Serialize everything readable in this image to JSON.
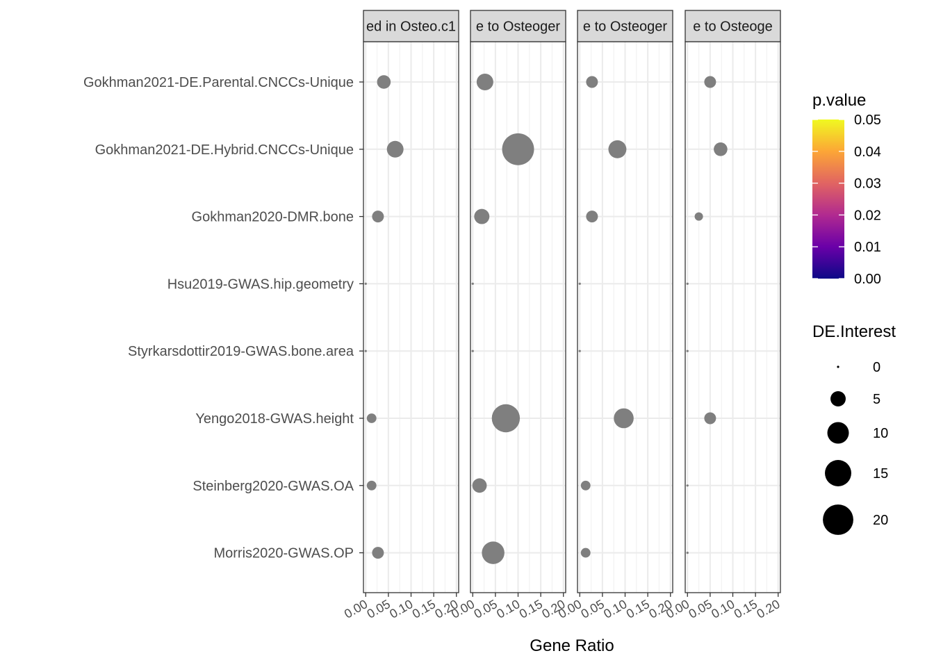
{
  "chart_data": {
    "type": "scatter",
    "xlabel": "Gene Ratio",
    "ylabel": "",
    "xlim": [
      -0.005,
      0.205
    ],
    "x_ticks": [
      0.0,
      0.05,
      0.1,
      0.15,
      0.2
    ],
    "x_tick_labels": [
      "0.00",
      "0.05",
      "0.10",
      "0.15",
      "0.20"
    ],
    "grid": true,
    "categories": [
      "Gokhman2021-DE.Parental.CNCCs-Unique",
      "Gokhman2021-DE.Hybrid.CNCCs-Unique",
      "Gokhman2020-DMR.bone",
      "Hsu2019-GWAS.hip.geometry",
      "Styrkarsdottir2019-GWAS.bone.area",
      "Yengo2018-GWAS.height",
      "Steinberg2020-GWAS.OA",
      "Morris2020-GWAS.OP"
    ],
    "panels": [
      {
        "strip_label": "ed in Osteo.c1",
        "points": [
          {
            "category": "Gokhman2021-DE.Parental.CNCCs-Unique",
            "x": 0.04,
            "size": 4
          },
          {
            "category": "Gokhman2021-DE.Hybrid.CNCCs-Unique",
            "x": 0.065,
            "size": 6
          },
          {
            "category": "Gokhman2020-DMR.bone",
            "x": 0.027,
            "size": 3
          },
          {
            "category": "Hsu2019-GWAS.hip.geometry",
            "x": 0.0,
            "size": 0
          },
          {
            "category": "Styrkarsdottir2019-GWAS.bone.area",
            "x": 0.0,
            "size": 0
          },
          {
            "category": "Yengo2018-GWAS.height",
            "x": 0.013,
            "size": 2
          },
          {
            "category": "Steinberg2020-GWAS.OA",
            "x": 0.013,
            "size": 2
          },
          {
            "category": "Morris2020-GWAS.OP",
            "x": 0.027,
            "size": 3
          }
        ]
      },
      {
        "strip_label": "e to Osteoger",
        "points": [
          {
            "category": "Gokhman2021-DE.Parental.CNCCs-Unique",
            "x": 0.027,
            "size": 6
          },
          {
            "category": "Gokhman2021-DE.Hybrid.CNCCs-Unique",
            "x": 0.1,
            "size": 22
          },
          {
            "category": "Gokhman2020-DMR.bone",
            "x": 0.02,
            "size": 5
          },
          {
            "category": "Hsu2019-GWAS.hip.geometry",
            "x": 0.0,
            "size": 0
          },
          {
            "category": "Styrkarsdottir2019-GWAS.bone.area",
            "x": 0.0,
            "size": 0
          },
          {
            "category": "Yengo2018-GWAS.height",
            "x": 0.073,
            "size": 17
          },
          {
            "category": "Steinberg2020-GWAS.OA",
            "x": 0.015,
            "size": 4.5
          },
          {
            "category": "Morris2020-GWAS.OP",
            "x": 0.045,
            "size": 11
          }
        ]
      },
      {
        "strip_label": "e to Osteoger",
        "points": [
          {
            "category": "Gokhman2021-DE.Parental.CNCCs-Unique",
            "x": 0.027,
            "size": 3
          },
          {
            "category": "Gokhman2021-DE.Hybrid.CNCCs-Unique",
            "x": 0.083,
            "size": 7
          },
          {
            "category": "Gokhman2020-DMR.bone",
            "x": 0.027,
            "size": 3
          },
          {
            "category": "Hsu2019-GWAS.hip.geometry",
            "x": 0.0,
            "size": 0
          },
          {
            "category": "Styrkarsdottir2019-GWAS.bone.area",
            "x": 0.0,
            "size": 0
          },
          {
            "category": "Yengo2018-GWAS.height",
            "x": 0.097,
            "size": 8.5
          },
          {
            "category": "Steinberg2020-GWAS.OA",
            "x": 0.013,
            "size": 2
          },
          {
            "category": "Morris2020-GWAS.OP",
            "x": 0.013,
            "size": 2
          }
        ]
      },
      {
        "strip_label": "e to Osteoge",
        "points": [
          {
            "category": "Gokhman2021-DE.Parental.CNCCs-Unique",
            "x": 0.05,
            "size": 3
          },
          {
            "category": "Gokhman2021-DE.Hybrid.CNCCs-Unique",
            "x": 0.073,
            "size": 4
          },
          {
            "category": "Gokhman2020-DMR.bone",
            "x": 0.025,
            "size": 1.5
          },
          {
            "category": "Hsu2019-GWAS.hip.geometry",
            "x": 0.0,
            "size": 0
          },
          {
            "category": "Styrkarsdottir2019-GWAS.bone.area",
            "x": 0.0,
            "size": 0
          },
          {
            "category": "Yengo2018-GWAS.height",
            "x": 0.05,
            "size": 3
          },
          {
            "category": "Steinberg2020-GWAS.OA",
            "x": 0.0,
            "size": 0
          },
          {
            "category": "Morris2020-GWAS.OP",
            "x": 0.0,
            "size": 0
          }
        ]
      }
    ],
    "legend_color": {
      "title": "p.value",
      "ticks": [
        0.05,
        0.04,
        0.03,
        0.02,
        0.01,
        0.0
      ],
      "tick_labels": [
        "0.05",
        "0.04",
        "0.03",
        "0.02",
        "0.01",
        "0.00"
      ],
      "gradient": [
        "#0D0887",
        "#6A00A8",
        "#B12A90",
        "#E16462",
        "#FCA636",
        "#F0F921"
      ]
    },
    "legend_size": {
      "title": "DE.Interest",
      "values": [
        0,
        5,
        10,
        15,
        20
      ],
      "labels": [
        "0",
        "5",
        "10",
        "15",
        "20"
      ]
    },
    "point_color": "#7f7f7f",
    "legend_point_color": "#000000",
    "strip_background": "#d9d9d9"
  }
}
